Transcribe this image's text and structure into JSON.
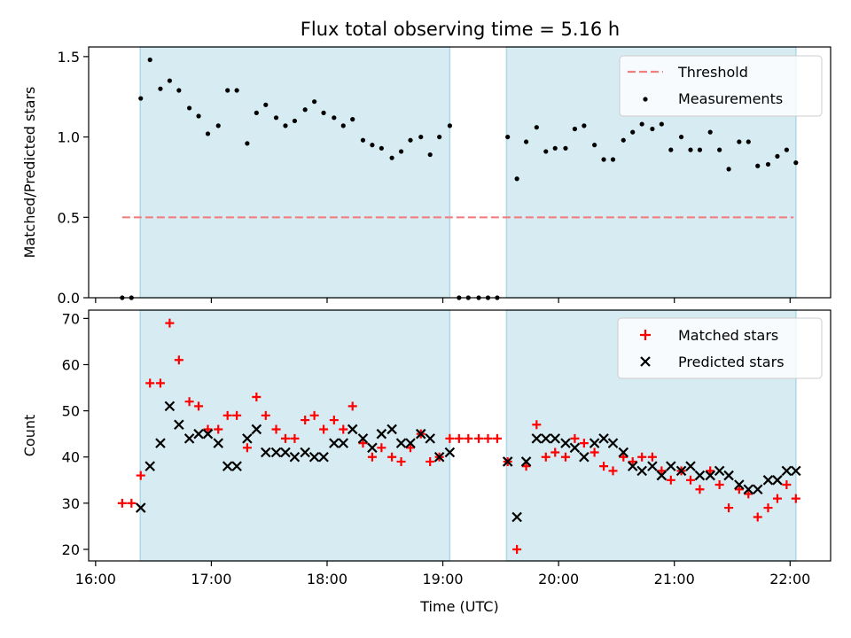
{
  "figure_title": "Flux total observing time = 5.16 h",
  "colors": {
    "shade": "#add8e6",
    "matched": "#ff0000",
    "predicted": "#000000",
    "threshold": "#f08080",
    "measurement": "#000000"
  },
  "chart_data": [
    {
      "type": "scatter",
      "name": "ratio-panel",
      "title": "Flux total observing time = 5.16 h",
      "xlabel": "",
      "ylabel": "Matched/Predicted stars",
      "ylim": [
        0,
        1.56
      ],
      "yticks": [
        0.0,
        0.5,
        1.0,
        1.5
      ],
      "ytick_labels": [
        "0.0",
        "0.5",
        "1.0",
        "1.5"
      ],
      "shaded_intervals_hours": [
        [
          16.386,
          19.06
        ],
        [
          19.55,
          22.05
        ]
      ],
      "threshold": {
        "label": "Threshold",
        "value": 0.5,
        "x_range_hours": [
          16.23,
          22.03
        ]
      },
      "legend": {
        "position": "upper right",
        "entries": [
          "Threshold",
          "Measurements"
        ]
      },
      "series": [
        {
          "name": "Measurements",
          "x_hours": [
            16.23,
            16.31,
            16.39,
            16.47,
            16.56,
            16.64,
            16.72,
            16.81,
            16.89,
            16.97,
            17.06,
            17.14,
            17.22,
            17.31,
            17.39,
            17.47,
            17.56,
            17.64,
            17.72,
            17.81,
            17.89,
            17.97,
            18.06,
            18.14,
            18.22,
            18.31,
            18.39,
            18.47,
            18.56,
            18.64,
            18.72,
            18.81,
            18.89,
            18.97,
            19.06,
            19.14,
            19.22,
            19.31,
            19.39,
            19.47,
            19.56,
            19.64,
            19.72,
            19.81,
            19.89,
            19.97,
            20.06,
            20.14,
            20.22,
            20.31,
            20.39,
            20.47,
            20.56,
            20.64,
            20.72,
            20.81,
            20.89,
            20.97,
            21.06,
            21.14,
            21.22,
            21.31,
            21.39,
            21.47,
            21.56,
            21.64,
            21.72,
            21.81,
            21.89,
            21.97,
            22.05
          ],
          "y": [
            0,
            0,
            1.24,
            1.48,
            1.3,
            1.35,
            1.29,
            1.18,
            1.13,
            1.02,
            1.07,
            1.29,
            1.29,
            0.96,
            1.15,
            1.2,
            1.12,
            1.07,
            1.1,
            1.17,
            1.22,
            1.15,
            1.12,
            1.07,
            1.11,
            0.98,
            0.95,
            0.93,
            0.87,
            0.91,
            0.98,
            1.0,
            0.89,
            1.0,
            1.07,
            0,
            0,
            0,
            0,
            0,
            1.0,
            0.74,
            0.97,
            1.06,
            0.91,
            0.93,
            0.93,
            1.05,
            1.07,
            0.95,
            0.86,
            0.86,
            0.98,
            1.03,
            1.08,
            1.05,
            1.08,
            0.92,
            1.0,
            0.92,
            0.92,
            1.03,
            0.92,
            0.8,
            0.97,
            0.97,
            0.82,
            0.83,
            0.88,
            0.92,
            0.84
          ]
        }
      ]
    },
    {
      "type": "scatter",
      "name": "count-panel",
      "title": "",
      "xlabel": "Time (UTC)",
      "ylabel": "Count",
      "xlim_hours": [
        15.94,
        22.35
      ],
      "ylim": [
        17.5,
        71.8
      ],
      "xticks_hours": [
        16,
        17,
        18,
        19,
        20,
        21,
        22
      ],
      "xtick_labels": [
        "16:00",
        "17:00",
        "18:00",
        "19:00",
        "20:00",
        "21:00",
        "22:00"
      ],
      "yticks": [
        20,
        30,
        40,
        50,
        60,
        70
      ],
      "ytick_labels": [
        "20",
        "30",
        "40",
        "50",
        "60",
        "70"
      ],
      "shaded_intervals_hours": [
        [
          16.386,
          19.06
        ],
        [
          19.55,
          22.05
        ]
      ],
      "legend": {
        "position": "upper right",
        "entries": [
          "Matched stars",
          "Predicted stars"
        ]
      },
      "series": [
        {
          "name": "Matched stars",
          "marker": "+",
          "x_hours": [
            16.23,
            16.31,
            16.39,
            16.47,
            16.56,
            16.64,
            16.72,
            16.81,
            16.89,
            16.97,
            17.06,
            17.14,
            17.22,
            17.31,
            17.39,
            17.47,
            17.56,
            17.64,
            17.72,
            17.81,
            17.89,
            17.97,
            18.06,
            18.14,
            18.22,
            18.31,
            18.39,
            18.47,
            18.56,
            18.64,
            18.72,
            18.81,
            18.89,
            18.97,
            19.06,
            19.14,
            19.22,
            19.31,
            19.39,
            19.47,
            19.56,
            19.64,
            19.72,
            19.81,
            19.89,
            19.97,
            20.06,
            20.14,
            20.22,
            20.31,
            20.39,
            20.47,
            20.56,
            20.64,
            20.72,
            20.81,
            20.89,
            20.97,
            21.06,
            21.14,
            21.22,
            21.31,
            21.39,
            21.47,
            21.56,
            21.64,
            21.72,
            21.81,
            21.89,
            21.97,
            22.05
          ],
          "y": [
            30,
            30,
            36,
            56,
            56,
            69,
            61,
            52,
            51,
            46,
            46,
            49,
            49,
            42,
            53,
            49,
            46,
            44,
            44,
            48,
            49,
            46,
            48,
            46,
            51,
            43,
            40,
            42,
            40,
            39,
            42,
            45,
            39,
            40,
            44,
            44,
            44,
            44,
            44,
            44,
            39,
            20,
            38,
            47,
            40,
            41,
            40,
            44,
            43,
            41,
            38,
            37,
            40,
            39,
            40,
            40,
            37,
            35,
            37,
            35,
            33,
            37,
            34,
            29,
            33,
            32,
            27,
            29,
            31,
            34,
            31
          ]
        },
        {
          "name": "Predicted stars",
          "marker": "x",
          "x_hours": [
            16.39,
            16.47,
            16.56,
            16.64,
            16.72,
            16.81,
            16.89,
            16.97,
            17.06,
            17.14,
            17.22,
            17.31,
            17.39,
            17.47,
            17.56,
            17.64,
            17.72,
            17.81,
            17.89,
            17.97,
            18.06,
            18.14,
            18.22,
            18.31,
            18.39,
            18.47,
            18.56,
            18.64,
            18.72,
            18.81,
            18.89,
            18.97,
            19.06,
            19.56,
            19.64,
            19.72,
            19.81,
            19.89,
            19.97,
            20.06,
            20.14,
            20.22,
            20.31,
            20.39,
            20.47,
            20.56,
            20.64,
            20.72,
            20.81,
            20.89,
            20.97,
            21.06,
            21.14,
            21.22,
            21.31,
            21.39,
            21.47,
            21.56,
            21.64,
            21.72,
            21.81,
            21.89,
            21.97,
            22.05
          ],
          "y": [
            29,
            38,
            43,
            51,
            47,
            44,
            45,
            45,
            43,
            38,
            38,
            44,
            46,
            41,
            41,
            41,
            40,
            41,
            40,
            40,
            43,
            43,
            46,
            44,
            42,
            45,
            46,
            43,
            43,
            45,
            44,
            40,
            41,
            39,
            27,
            39,
            44,
            44,
            44,
            43,
            42,
            40,
            43,
            44,
            43,
            41,
            38,
            37,
            38,
            36,
            38,
            37,
            38,
            36,
            36,
            37,
            36,
            34,
            33,
            33,
            35,
            35,
            37,
            37
          ]
        }
      ]
    }
  ]
}
